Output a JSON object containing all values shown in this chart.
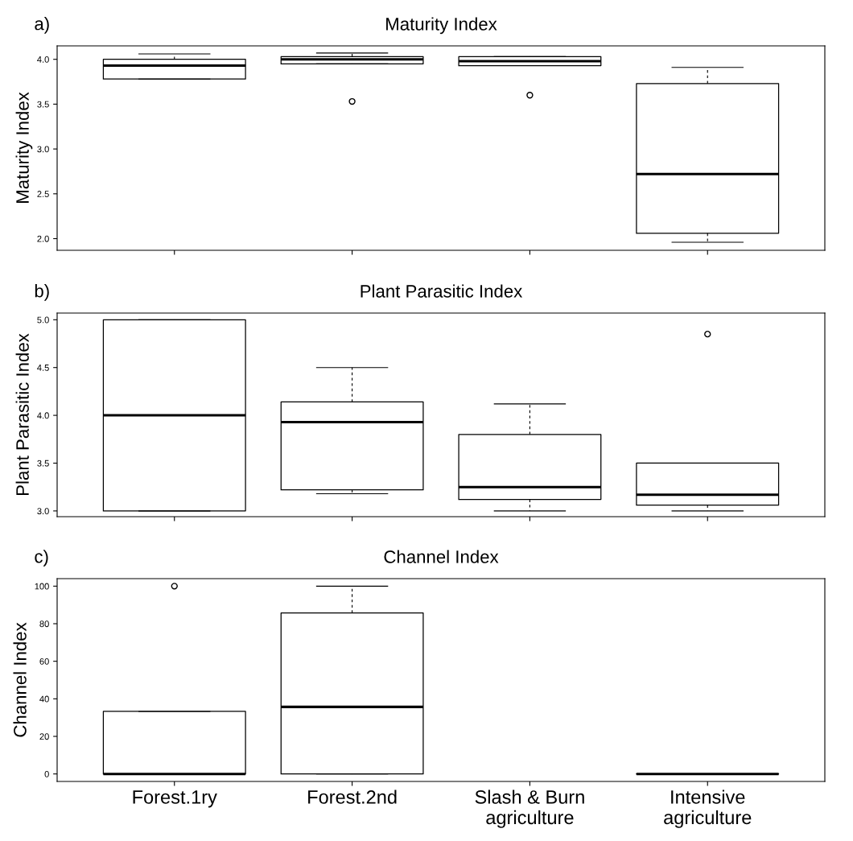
{
  "chart_data": [
    {
      "type": "box",
      "title": "Maturity Index",
      "ylabel": "Maturity Index",
      "annotations": [
        "a)"
      ],
      "categories": [
        null,
        null,
        null,
        null
      ],
      "ylim": [
        1.87,
        4.15
      ],
      "yticks": [
        {
          "value": 2.0,
          "label": "2.0"
        },
        {
          "value": 2.5,
          "label": "2.5"
        },
        {
          "value": 3.0,
          "label": "3.0"
        },
        {
          "value": 3.5,
          "label": "3.5"
        },
        {
          "value": 4.0,
          "label": "4.0"
        }
      ],
      "tick_labels": "y",
      "grid": false,
      "boxes": [
        {
          "low": 3.78,
          "q1": 3.78,
          "median": 3.93,
          "q3": 4.0,
          "high": 4.06
        },
        {
          "low": 3.95,
          "q1": 3.95,
          "median": 4.0,
          "q3": 4.03,
          "high": 4.07,
          "outliers": [
            3.53
          ]
        },
        {
          "low": 3.93,
          "q1": 3.93,
          "median": 3.98,
          "q3": 4.03,
          "high": 4.03,
          "outliers": [
            3.6
          ]
        },
        {
          "low": 1.96,
          "q1": 2.06,
          "median": 2.72,
          "q3": 3.73,
          "high": 3.91
        }
      ]
    },
    {
      "type": "box",
      "title": "Plant Parasitic Index",
      "ylabel": "Plant Parasitic Index",
      "annotations": [
        "b)"
      ],
      "categories": [
        null,
        null,
        null,
        null
      ],
      "ylim": [
        2.94,
        5.07
      ],
      "yticks": [
        {
          "value": 3.0,
          "label": "3.0"
        },
        {
          "value": 3.5,
          "label": "3.5"
        },
        {
          "value": 4.0,
          "label": "4.0"
        },
        {
          "value": 4.5,
          "label": "4.5"
        },
        {
          "value": 5.0,
          "label": "5.0"
        }
      ],
      "tick_labels": "y",
      "grid": false,
      "boxes": [
        {
          "low": 3.0,
          "q1": 3.0,
          "median": 4.0,
          "q3": 5.0,
          "high": 5.0
        },
        {
          "low": 3.18,
          "q1": 3.22,
          "median": 3.93,
          "q3": 4.14,
          "high": 4.5
        },
        {
          "low": 3.0,
          "q1": 3.12,
          "median": 3.25,
          "q3": 3.8,
          "high": 4.12
        },
        {
          "low": 3.0,
          "q1": 3.06,
          "median": 3.17,
          "q3": 3.5,
          "high": 3.5,
          "outliers": [
            4.85
          ]
        }
      ]
    },
    {
      "type": "box",
      "title": "Channel Index",
      "ylabel": "Channel Index",
      "annotations": [
        "c)"
      ],
      "categories": [
        "Forest.1ry",
        "Forest.2nd",
        "Slash & Burn\nagriculture",
        "Intensive\nagriculture"
      ],
      "ylim": [
        -4,
        104
      ],
      "yticks": [
        0,
        20,
        40,
        60,
        80,
        100
      ],
      "grid": false,
      "boxes": [
        {
          "low": 0,
          "q1": 0,
          "median": 0,
          "q3": 33.3,
          "high": 33.3,
          "outliers": [
            100
          ]
        },
        {
          "low": 0,
          "q1": 0,
          "median": 35.7,
          "q3": 85.7,
          "high": 100
        },
        null,
        {
          "low": 0,
          "q1": 0,
          "median": 0,
          "q3": 0,
          "high": 0
        }
      ]
    }
  ]
}
